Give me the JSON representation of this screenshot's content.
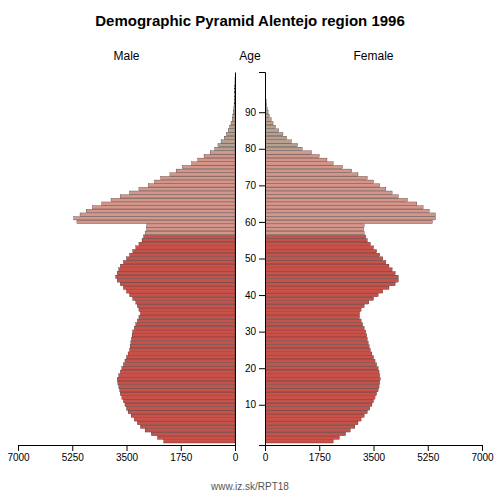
{
  "chart_data": {
    "type": "pyramid",
    "orientation": "horizontal",
    "title": "Demographic Pyramid Alentejo region 1996",
    "ylabel": "Age",
    "annotations": [
      "www.iz.sk/RPT18"
    ],
    "grid": false,
    "xlim": [
      0,
      7000
    ],
    "xticks": [
      0,
      1750,
      3500,
      5250,
      7000
    ],
    "ylim": [
      -1,
      101
    ],
    "yticks": [
      10,
      20,
      30,
      40,
      50,
      60,
      70,
      80,
      90
    ],
    "categories": [
      0,
      1,
      2,
      3,
      4,
      5,
      6,
      7,
      8,
      9,
      10,
      11,
      12,
      13,
      14,
      15,
      16,
      17,
      18,
      19,
      20,
      21,
      22,
      23,
      24,
      25,
      26,
      27,
      28,
      29,
      30,
      31,
      32,
      33,
      34,
      35,
      36,
      37,
      38,
      39,
      40,
      41,
      42,
      43,
      44,
      45,
      46,
      47,
      48,
      49,
      50,
      51,
      52,
      53,
      54,
      55,
      56,
      57,
      58,
      59,
      60,
      61,
      62,
      63,
      64,
      65,
      66,
      67,
      68,
      69,
      70,
      71,
      72,
      73,
      74,
      75,
      76,
      77,
      78,
      79,
      80,
      81,
      82,
      83,
      84,
      85,
      86,
      87,
      88,
      89,
      90,
      91,
      92,
      93,
      94,
      95,
      96,
      97,
      98,
      99
    ],
    "series": [
      {
        "name": "Male",
        "values": [
          2300,
          2500,
          2700,
          2900,
          3050,
          3150,
          3250,
          3350,
          3450,
          3500,
          3550,
          3600,
          3650,
          3700,
          3720,
          3750,
          3780,
          3800,
          3750,
          3700,
          3650,
          3600,
          3550,
          3500,
          3450,
          3400,
          3380,
          3360,
          3340,
          3320,
          3300,
          3250,
          3200,
          3150,
          3100,
          3050,
          3100,
          3150,
          3200,
          3300,
          3400,
          3500,
          3600,
          3700,
          3800,
          3850,
          3800,
          3750,
          3700,
          3600,
          3500,
          3400,
          3300,
          3200,
          3100,
          3000,
          2950,
          2900,
          2850,
          2850,
          5100,
          5200,
          5000,
          4800,
          4600,
          4300,
          4000,
          3700,
          3400,
          3100,
          2800,
          2600,
          2400,
          2100,
          1900,
          1700,
          1400,
          1200,
          1000,
          800,
          650,
          550,
          450,
          350,
          280,
          220,
          170,
          130,
          90,
          70,
          50,
          40,
          30,
          20,
          15,
          10,
          7,
          5,
          3,
          2
        ],
        "colors": [
          "#c8524a",
          "#c8524a",
          "#c8524a",
          "#c8524a",
          "#c8524a",
          "#c8524a",
          "#c8524a",
          "#c8524a",
          "#c8524a",
          "#c8524a",
          "#c8524a",
          "#c8524a",
          "#c8524a",
          "#c8524a",
          "#c8524a",
          "#c8524a",
          "#c8524a",
          "#c8524a",
          "#c8524a",
          "#c8524a",
          "#c8524a",
          "#c8524a",
          "#c8524a",
          "#c8524a",
          "#c8524a",
          "#c8524a",
          "#c8524a",
          "#c8524a",
          "#c8524a",
          "#c8524a",
          "#c8524a",
          "#c8524a",
          "#c8524a",
          "#c8524a",
          "#c8524a",
          "#c8524a",
          "#c8524a",
          "#c8524a",
          "#c8524a",
          "#c8524a",
          "#c8524a",
          "#c8524a",
          "#c8524a",
          "#c8524a",
          "#c8524a",
          "#c8524a",
          "#c8524a",
          "#c8524a",
          "#c8524a",
          "#c8524a",
          "#c8524a",
          "#c8524a",
          "#c8524a",
          "#c8524a",
          "#c8524a",
          "#c8524a",
          "#c8524a",
          "#d4958a",
          "#d4958a",
          "#d4958a",
          "#d4958a",
          "#d4958a",
          "#d4958a",
          "#d4958a",
          "#d4958a",
          "#d4958a",
          "#d4958a",
          "#d4958a",
          "#d4958a",
          "#d4958a",
          "#d4958a",
          "#d4958a",
          "#d4958a",
          "#d4958a",
          "#d4958a",
          "#d4958a",
          "#d4958a",
          "#d4958a",
          "#d4958a",
          "#d4958a",
          "#b8a090",
          "#b8a090",
          "#b8a090",
          "#b8a090",
          "#b8a090",
          "#b8a090",
          "#b8a090",
          "#b8a090",
          "#b8a090",
          "#b8a090",
          "#b8a090",
          "#b8a090",
          "#b8a090",
          "#b8a090",
          "#b8a090",
          "#b8a090",
          "#b8a090",
          "#b8a090",
          "#b8a090",
          "#b8a090"
        ]
      },
      {
        "name": "Female",
        "values": [
          2200,
          2400,
          2600,
          2750,
          2900,
          3000,
          3100,
          3200,
          3300,
          3380,
          3450,
          3500,
          3550,
          3600,
          3650,
          3680,
          3700,
          3720,
          3700,
          3680,
          3650,
          3600,
          3550,
          3500,
          3450,
          3400,
          3360,
          3330,
          3300,
          3280,
          3250,
          3200,
          3150,
          3100,
          3050,
          3050,
          3100,
          3200,
          3350,
          3500,
          3650,
          3800,
          4000,
          4200,
          4300,
          4300,
          4200,
          4100,
          4000,
          3900,
          3800,
          3700,
          3600,
          3500,
          3400,
          3300,
          3250,
          3200,
          3180,
          3200,
          5400,
          5500,
          5500,
          5300,
          5100,
          4900,
          4600,
          4300,
          4100,
          3900,
          3700,
          3500,
          3300,
          3000,
          2800,
          2500,
          2200,
          2000,
          1750,
          1500,
          1200,
          1050,
          850,
          700,
          580,
          440,
          340,
          260,
          200,
          140,
          100,
          75,
          55,
          40,
          28,
          18,
          12,
          8,
          5,
          3
        ],
        "colors": [
          "#c8524a",
          "#c8524a",
          "#c8524a",
          "#c8524a",
          "#c8524a",
          "#c8524a",
          "#c8524a",
          "#c8524a",
          "#c8524a",
          "#c8524a",
          "#c8524a",
          "#c8524a",
          "#c8524a",
          "#c8524a",
          "#c8524a",
          "#c8524a",
          "#c8524a",
          "#c8524a",
          "#c8524a",
          "#c8524a",
          "#c8524a",
          "#c8524a",
          "#c8524a",
          "#c8524a",
          "#c8524a",
          "#c8524a",
          "#c8524a",
          "#c8524a",
          "#c8524a",
          "#c8524a",
          "#c8524a",
          "#c8524a",
          "#c8524a",
          "#c8524a",
          "#c8524a",
          "#c8524a",
          "#c8524a",
          "#c8524a",
          "#c8524a",
          "#c8524a",
          "#c8524a",
          "#c8524a",
          "#c8524a",
          "#c8524a",
          "#c8524a",
          "#c8524a",
          "#c8524a",
          "#c8524a",
          "#c8524a",
          "#c8524a",
          "#c8524a",
          "#c8524a",
          "#c8524a",
          "#c8524a",
          "#c8524a",
          "#c8524a",
          "#c8524a",
          "#d4958a",
          "#d4958a",
          "#d4958a",
          "#d4958a",
          "#d4958a",
          "#d4958a",
          "#d4958a",
          "#d4958a",
          "#d4958a",
          "#d4958a",
          "#d4958a",
          "#d4958a",
          "#d4958a",
          "#d4958a",
          "#d4958a",
          "#d4958a",
          "#d4958a",
          "#d4958a",
          "#d4958a",
          "#d4958a",
          "#d4958a",
          "#d4958a",
          "#d4958a",
          "#b8a090",
          "#b8a090",
          "#b8a090",
          "#b8a090",
          "#b8a090",
          "#b8a090",
          "#b8a090",
          "#b8a090",
          "#b8a090",
          "#b8a090",
          "#b8a090",
          "#b8a090",
          "#b8a090",
          "#b8a090",
          "#b8a090",
          "#b8a090",
          "#b8a090",
          "#b8a090",
          "#b8a090",
          "#b8a090"
        ]
      }
    ]
  }
}
